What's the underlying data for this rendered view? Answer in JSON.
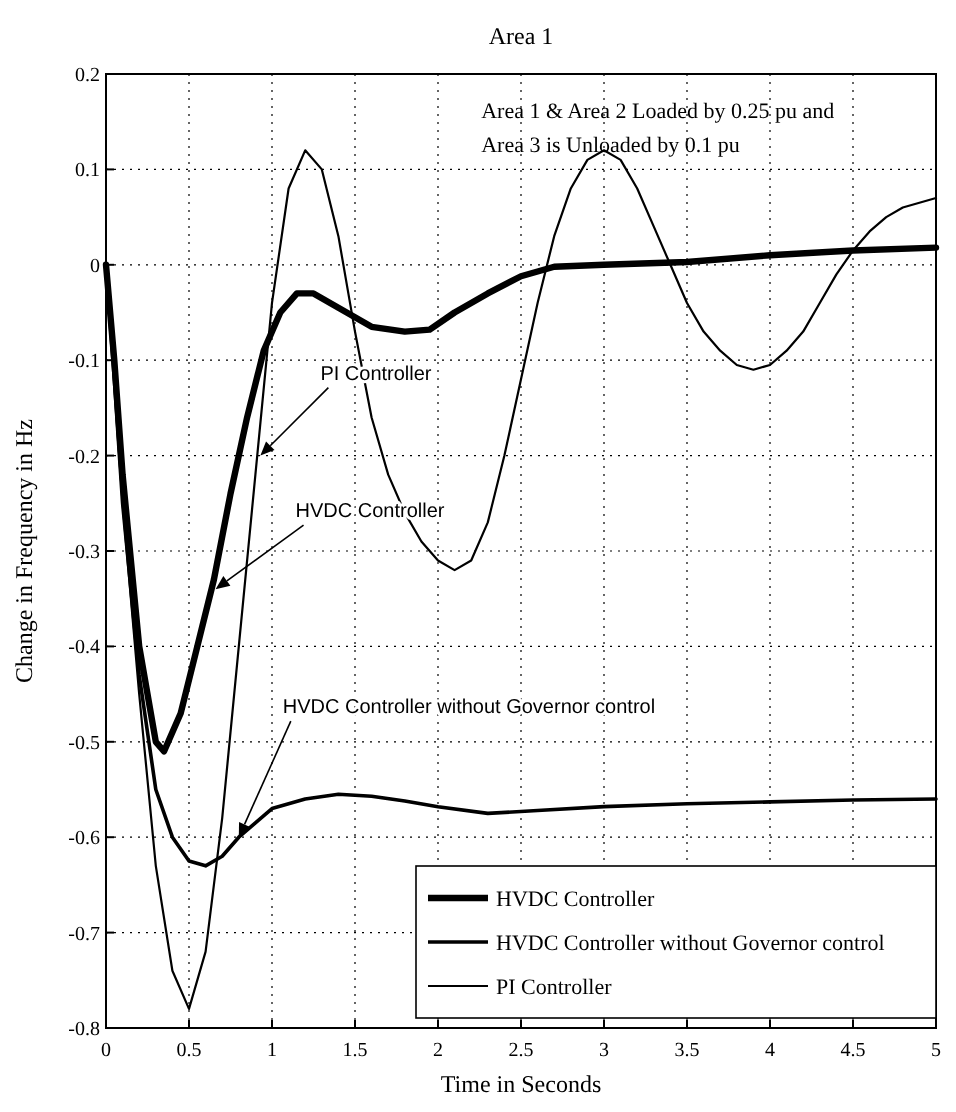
{
  "chart_data": {
    "type": "line",
    "title": "Area 1",
    "xlabel": "Time in Seconds",
    "ylabel": "Change in Frequency in Hz",
    "xlim": [
      0,
      5
    ],
    "xticks": [
      0,
      0.5,
      1,
      1.5,
      2,
      2.5,
      3,
      3.5,
      4,
      4.5,
      5
    ],
    "ylim": [
      -0.8,
      0.2
    ],
    "yticks": [
      -0.8,
      -0.7,
      -0.6,
      -0.5,
      -0.4,
      -0.3,
      -0.2,
      -0.1,
      0,
      0.1,
      0.2
    ],
    "grid": true,
    "legend": "bottom right",
    "line_style": "solid",
    "series": [
      {
        "name": "HVDC Controller",
        "color": "#000000",
        "x": [
          0,
          0.05,
          0.1,
          0.2,
          0.3,
          0.35,
          0.45,
          0.55,
          0.65,
          0.75,
          0.85,
          0.95,
          1.05,
          1.15,
          1.25,
          1.4,
          1.6,
          1.8,
          1.95,
          2.1,
          2.3,
          2.5,
          2.7,
          3.0,
          3.5,
          4.0,
          4.5,
          5.0
        ],
        "values": [
          0,
          -0.1,
          -0.22,
          -0.4,
          -0.5,
          -0.51,
          -0.47,
          -0.4,
          -0.33,
          -0.24,
          -0.16,
          -0.09,
          -0.05,
          -0.03,
          -0.03,
          -0.045,
          -0.065,
          -0.07,
          -0.068,
          -0.05,
          -0.03,
          -0.012,
          -0.002,
          0,
          0.003,
          0.01,
          0.015,
          0.018
        ]
      },
      {
        "name": "HVDC Controller without Governor control",
        "color": "#000000",
        "x": [
          0,
          0.05,
          0.1,
          0.2,
          0.3,
          0.4,
          0.5,
          0.6,
          0.7,
          0.8,
          0.9,
          1.0,
          1.2,
          1.4,
          1.6,
          1.8,
          2.0,
          2.3,
          2.6,
          3.0,
          3.5,
          4.0,
          4.5,
          5.0
        ],
        "values": [
          0,
          -0.12,
          -0.25,
          -0.43,
          -0.55,
          -0.6,
          -0.625,
          -0.63,
          -0.62,
          -0.6,
          -0.585,
          -0.57,
          -0.56,
          -0.555,
          -0.557,
          -0.562,
          -0.568,
          -0.575,
          -0.572,
          -0.568,
          -0.565,
          -0.563,
          -0.561,
          -0.56
        ]
      },
      {
        "name": "PI Controller",
        "color": "#000000",
        "x": [
          0,
          0.1,
          0.2,
          0.3,
          0.4,
          0.5,
          0.6,
          0.7,
          0.8,
          0.9,
          1.0,
          1.1,
          1.2,
          1.3,
          1.4,
          1.5,
          1.6,
          1.7,
          1.8,
          1.9,
          2.0,
          2.1,
          2.2,
          2.3,
          2.4,
          2.5,
          2.6,
          2.7,
          2.8,
          2.9,
          3.0,
          3.1,
          3.2,
          3.3,
          3.4,
          3.5,
          3.6,
          3.7,
          3.8,
          3.9,
          4.0,
          4.1,
          4.2,
          4.3,
          4.4,
          4.5,
          4.6,
          4.7,
          4.8,
          4.9,
          5.0
        ],
        "values": [
          0,
          -0.25,
          -0.45,
          -0.63,
          -0.74,
          -0.78,
          -0.72,
          -0.58,
          -0.4,
          -0.22,
          -0.04,
          0.08,
          0.12,
          0.1,
          0.03,
          -0.07,
          -0.16,
          -0.22,
          -0.26,
          -0.29,
          -0.31,
          -0.32,
          -0.31,
          -0.27,
          -0.2,
          -0.12,
          -0.04,
          0.03,
          0.08,
          0.11,
          0.12,
          0.11,
          0.08,
          0.04,
          0,
          -0.04,
          -0.07,
          -0.09,
          -0.105,
          -0.11,
          -0.105,
          -0.09,
          -0.07,
          -0.04,
          -0.01,
          0.015,
          0.035,
          0.05,
          0.06,
          0.065,
          0.07
        ]
      }
    ],
    "annotations": [
      "Area 1 & Area 2 Loaded by 0.25 pu and",
      "Area 3 is Unloaded by 0.1 pu",
      {
        "text": "PI Controller",
        "x": 0.93,
        "y": -0.2
      },
      {
        "text": "HVDC Controller",
        "x": 0.66,
        "y": -0.34
      },
      {
        "text": "HVDC Controller without Governor control",
        "x": 0.8,
        "y": -0.6
      }
    ]
  }
}
